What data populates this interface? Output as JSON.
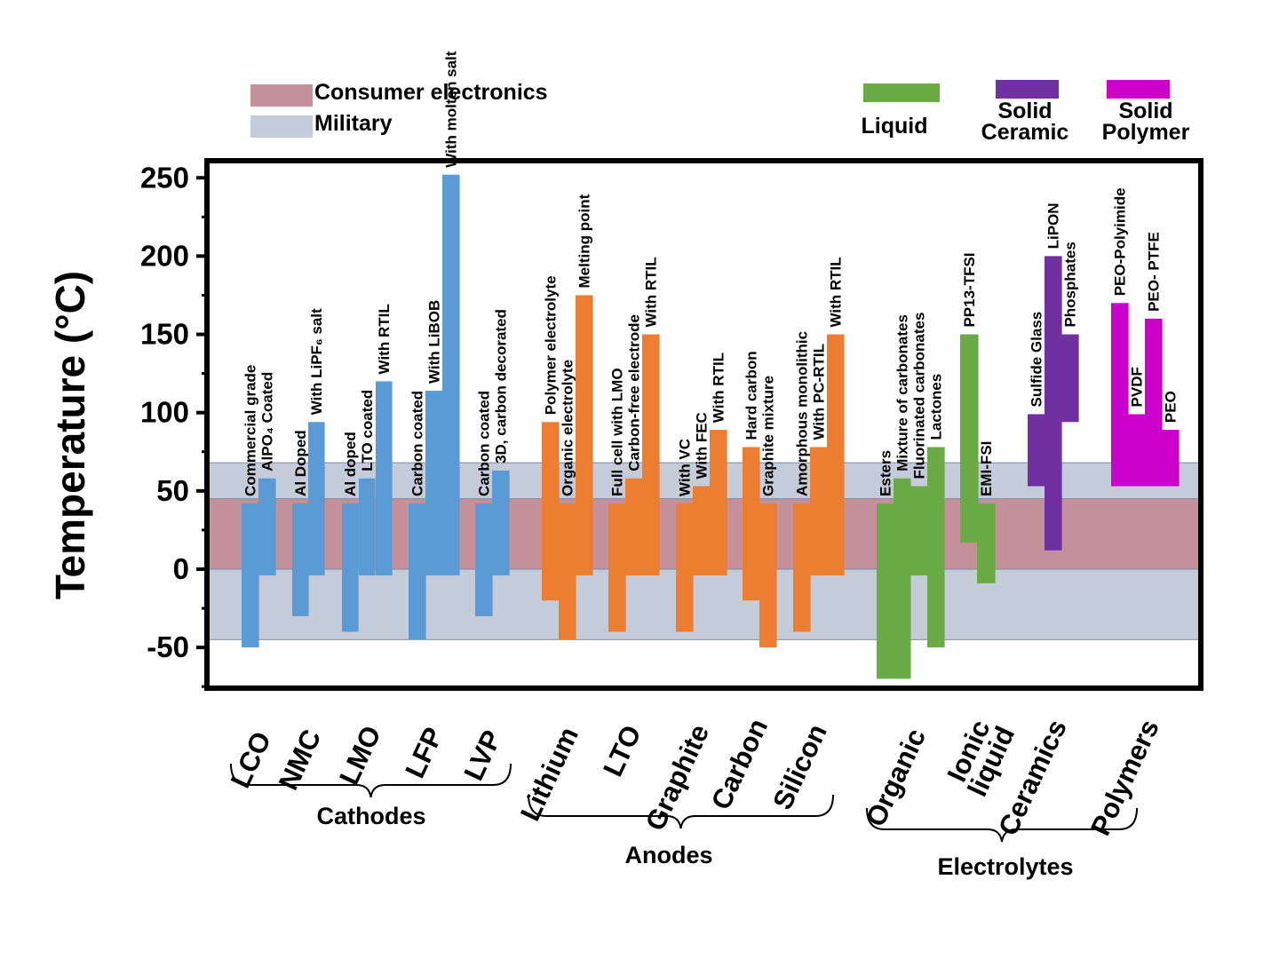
{
  "chart_data": {
    "type": "range-bar",
    "ylabel": "Temperature (°C)",
    "ylim": [
      -75,
      258
    ],
    "yticks": [
      250,
      200,
      150,
      100,
      50,
      0,
      -50
    ],
    "ytick_labels": [
      "250",
      "200",
      "150",
      "100",
      "50",
      "0",
      "-50"
    ],
    "zones": [
      {
        "name": "Consumer electronics",
        "low": 0,
        "high": 45,
        "color": "#c4909a"
      },
      {
        "name": "Military",
        "low": -45,
        "high": 68,
        "color": "#c5ccd9"
      }
    ],
    "colors": {
      "Liquid": "#6bab45",
      "Solid Ceramic": "#7030a0",
      "Solid Polymer": "#cc00cc",
      "Cathode": "#5b9bd5",
      "Anode": "#ed7d31"
    },
    "legend": {
      "zones": [
        "Consumer electronics",
        "Military"
      ],
      "materials": [
        {
          "lines": [
            "Liquid"
          ],
          "color": "#6bab45"
        },
        {
          "lines": [
            "Solid",
            "Ceramic"
          ],
          "color": "#7030a0"
        },
        {
          "lines": [
            "Solid",
            "Polymer"
          ],
          "color": "#cc00cc"
        }
      ]
    },
    "groups": [
      {
        "name": "LCO",
        "lines": [
          "LCO"
        ],
        "color": "#5b9bd5",
        "family": "Cathodes",
        "variants": [
          {
            "name": "Commercial grade",
            "lines": [
              "Commercial grade"
            ],
            "low": -50,
            "high": 42
          },
          {
            "name": "AlPO4 Coated",
            "lines": [
              "AlPO₄ Coated"
            ],
            "low": -4,
            "high": 58
          }
        ]
      },
      {
        "name": "NMC",
        "lines": [
          "NMC"
        ],
        "color": "#5b9bd5",
        "family": "Cathodes",
        "variants": [
          {
            "name": "Al Doped",
            "lines": [
              "Al Doped"
            ],
            "low": -30,
            "high": 42
          },
          {
            "name": "With LiPF6 salt",
            "lines": [
              "With LiPF₆ salt"
            ],
            "low": -4,
            "high": 94
          }
        ]
      },
      {
        "name": "LMO",
        "lines": [
          "LMO"
        ],
        "color": "#5b9bd5",
        "family": "Cathodes",
        "variants": [
          {
            "name": "Al doped",
            "lines": [
              "Al doped"
            ],
            "low": -40,
            "high": 42
          },
          {
            "name": "LTO coated",
            "lines": [
              "LTO coated"
            ],
            "low": -4,
            "high": 58
          },
          {
            "name": "With RTIL",
            "lines": [
              "With RTIL"
            ],
            "low": -4,
            "high": 120
          }
        ]
      },
      {
        "name": "LFP",
        "lines": [
          "LFP"
        ],
        "color": "#5b9bd5",
        "family": "Cathodes",
        "variants": [
          {
            "name": "Carbon coated",
            "lines": [
              "Carbon coated"
            ],
            "low": -45,
            "high": 42
          },
          {
            "name": "With LiBOB",
            "lines": [
              "With LiBOB"
            ],
            "low": -4,
            "high": 114
          },
          {
            "name": "With molten salt",
            "lines": [
              "With molten salt"
            ],
            "low": -4,
            "high": 252
          }
        ]
      },
      {
        "name": "LVP",
        "lines": [
          "LVP"
        ],
        "color": "#5b9bd5",
        "family": "Cathodes",
        "variants": [
          {
            "name": "Carbon coated",
            "lines": [
              "Carbon coated"
            ],
            "low": -30,
            "high": 42
          },
          {
            "name": "3D, carbon decorated",
            "lines": [
              "3D, carbon decorated"
            ],
            "low": -4,
            "high": 63
          }
        ]
      },
      {
        "name": "Lithium",
        "lines": [
          "Lithium"
        ],
        "color": "#ed7d31",
        "family": "Anodes",
        "variants": [
          {
            "name": "Polymer electrolyte",
            "lines": [
              "Polymer electrolyte"
            ],
            "low": -20,
            "high": 94
          },
          {
            "name": "Organic electrolyte",
            "lines": [
              "Organic electrolyte"
            ],
            "low": -45,
            "high": 42
          },
          {
            "name": "Melting point",
            "lines": [
              "Melting point"
            ],
            "low": -4,
            "high": 175
          }
        ]
      },
      {
        "name": "LTO",
        "lines": [
          "LTO"
        ],
        "color": "#ed7d31",
        "family": "Anodes",
        "variants": [
          {
            "name": "Full cell with LMO",
            "lines": [
              "Full cell with LMO"
            ],
            "low": -40,
            "high": 42
          },
          {
            "name": "Carbon-free electrode",
            "lines": [
              "Carbon-free electrode"
            ],
            "low": -4,
            "high": 58
          },
          {
            "name": "With RTIL",
            "lines": [
              "With RTIL"
            ],
            "low": -4,
            "high": 150
          }
        ]
      },
      {
        "name": "Graphite",
        "lines": [
          "Graphite"
        ],
        "color": "#ed7d31",
        "family": "Anodes",
        "variants": [
          {
            "name": "With VC",
            "lines": [
              "With VC"
            ],
            "low": -40,
            "high": 42
          },
          {
            "name": "With FEC",
            "lines": [
              "With FEC"
            ],
            "low": -4,
            "high": 53
          },
          {
            "name": "With RTIL",
            "lines": [
              "With RTIL"
            ],
            "low": -4,
            "high": 89
          }
        ]
      },
      {
        "name": "Carbon",
        "lines": [
          "Carbon"
        ],
        "color": "#ed7d31",
        "family": "Anodes",
        "variants": [
          {
            "name": "Hard carbon",
            "lines": [
              "Hard carbon"
            ],
            "low": -20,
            "high": 78
          },
          {
            "name": "Graphite mixture",
            "lines": [
              "Graphite mixture"
            ],
            "low": -50,
            "high": 42
          }
        ]
      },
      {
        "name": "Silicon",
        "lines": [
          "Silicon"
        ],
        "color": "#ed7d31",
        "family": "Anodes",
        "variants": [
          {
            "name": "Amorphous monolithic",
            "lines": [
              "Amorphous monolithic"
            ],
            "low": -40,
            "high": 42
          },
          {
            "name": "With PC-RTIL",
            "lines": [
              "With PC-RTIL"
            ],
            "low": -4,
            "high": 78
          },
          {
            "name": "With RTIL",
            "lines": [
              "With RTIL"
            ],
            "low": -4,
            "high": 150
          }
        ]
      },
      {
        "name": "Organic",
        "lines": [
          "Organic"
        ],
        "color": "#6bab45",
        "family": "Electrolytes",
        "variants": [
          {
            "name": "Esters",
            "lines": [
              "Esters"
            ],
            "low": -70,
            "high": 42
          },
          {
            "name": "Mixture of carbonates",
            "lines": [
              "Mixture of carbonates"
            ],
            "low": -70,
            "high": 58
          },
          {
            "name": "Fluorinated carbonates",
            "lines": [
              "Fluorinated carbonates"
            ],
            "low": -4,
            "high": 53
          },
          {
            "name": "Lactones",
            "lines": [
              "Lactones"
            ],
            "low": -50,
            "high": 78
          }
        ]
      },
      {
        "name": "Ionic liquid",
        "lines": [
          "Ionic",
          "liquid"
        ],
        "color": "#6bab45",
        "family": "Electrolytes",
        "variants": [
          {
            "name": "PP13-TFSI",
            "lines": [
              "PP13-TFSI"
            ],
            "low": 17,
            "high": 150
          },
          {
            "name": "EMI-FSI",
            "lines": [
              "EMI-FSI"
            ],
            "low": -9,
            "high": 42
          }
        ]
      },
      {
        "name": "Ceramics",
        "lines": [
          "Ceramics"
        ],
        "color": "#7030a0",
        "family": "Electrolytes",
        "variants": [
          {
            "name": "Sulfide Glass",
            "lines": [
              "Sulfide Glass"
            ],
            "low": 53,
            "high": 99
          },
          {
            "name": "LiPON",
            "lines": [
              "LiPON"
            ],
            "low": 12,
            "high": 200
          },
          {
            "name": "Phosphates",
            "lines": [
              "Phosphates"
            ],
            "low": 94,
            "high": 150
          }
        ]
      },
      {
        "name": "Polymers",
        "lines": [
          "Polymers"
        ],
        "color": "#cc00cc",
        "family": "Electrolytes",
        "variants": [
          {
            "name": "PEO-Polyimide",
            "lines": [
              "PEO-Polyimide"
            ],
            "low": 53,
            "high": 170
          },
          {
            "name": "PVDF",
            "lines": [
              "PVDF"
            ],
            "low": 53,
            "high": 99
          },
          {
            "name": "PEO- PTFE",
            "lines": [
              "PEO- PTFE"
            ],
            "low": 53,
            "high": 160
          },
          {
            "name": "PEO",
            "lines": [
              "PEO"
            ],
            "low": 53,
            "high": 89
          }
        ]
      }
    ],
    "families": [
      {
        "name": "Cathodes",
        "label": "Cathodes"
      },
      {
        "name": "Anodes",
        "label": "Anodes"
      },
      {
        "name": "Electrolytes",
        "label": "Electrolytes"
      }
    ]
  }
}
